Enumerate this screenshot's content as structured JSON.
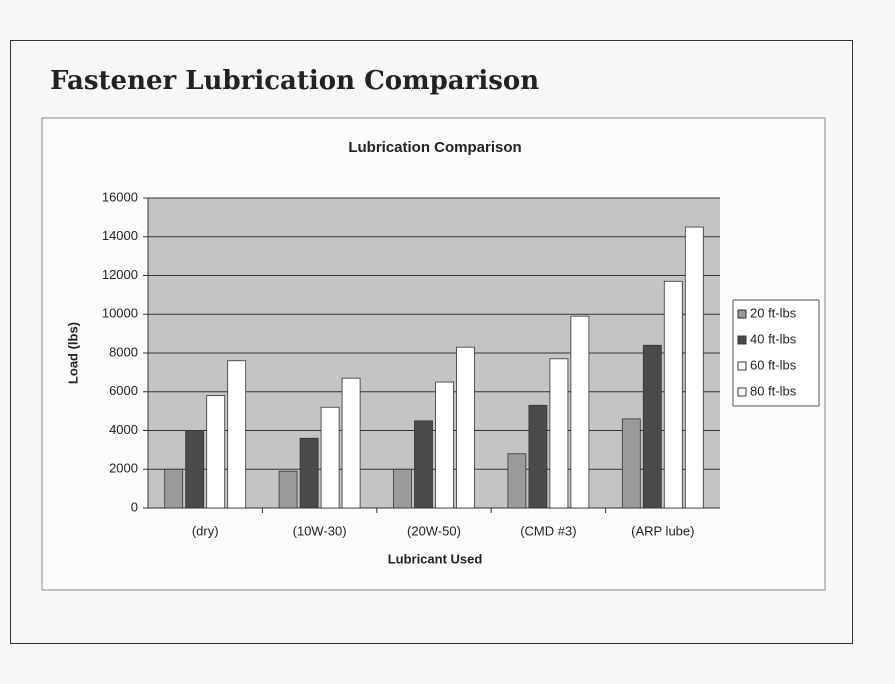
{
  "heading": "Fastener Lubrication Comparison",
  "chart_data": {
    "type": "bar",
    "title": "Lubrication Comparison",
    "x_label": "Lubricant Used",
    "y_label": "Load (lbs)",
    "categories": [
      "(dry)",
      "(10W-30)",
      "(20W-50)",
      "(CMD #3)",
      "(ARP lube)"
    ],
    "series": [
      {
        "name": "20 ft-lbs",
        "color": "#9a9a9a",
        "values": [
          2000,
          1900,
          2000,
          2800,
          4600
        ]
      },
      {
        "name": "40 ft-lbs",
        "color": "#4a4a4a",
        "values": [
          4000,
          3600,
          4500,
          5300,
          8400
        ]
      },
      {
        "name": "60 ft-lbs",
        "color": "#ffffff",
        "values": [
          5800,
          5200,
          6500,
          7700,
          11700
        ]
      },
      {
        "name": "80 ft-lbs",
        "color": "#ffffff",
        "values": [
          7600,
          6700,
          8300,
          9900,
          14500
        ]
      }
    ],
    "ylim": [
      0,
      16000
    ],
    "yticks": [
      0,
      2000,
      4000,
      6000,
      8000,
      10000,
      12000,
      14000,
      16000
    ],
    "grid": true,
    "legend": "right"
  }
}
